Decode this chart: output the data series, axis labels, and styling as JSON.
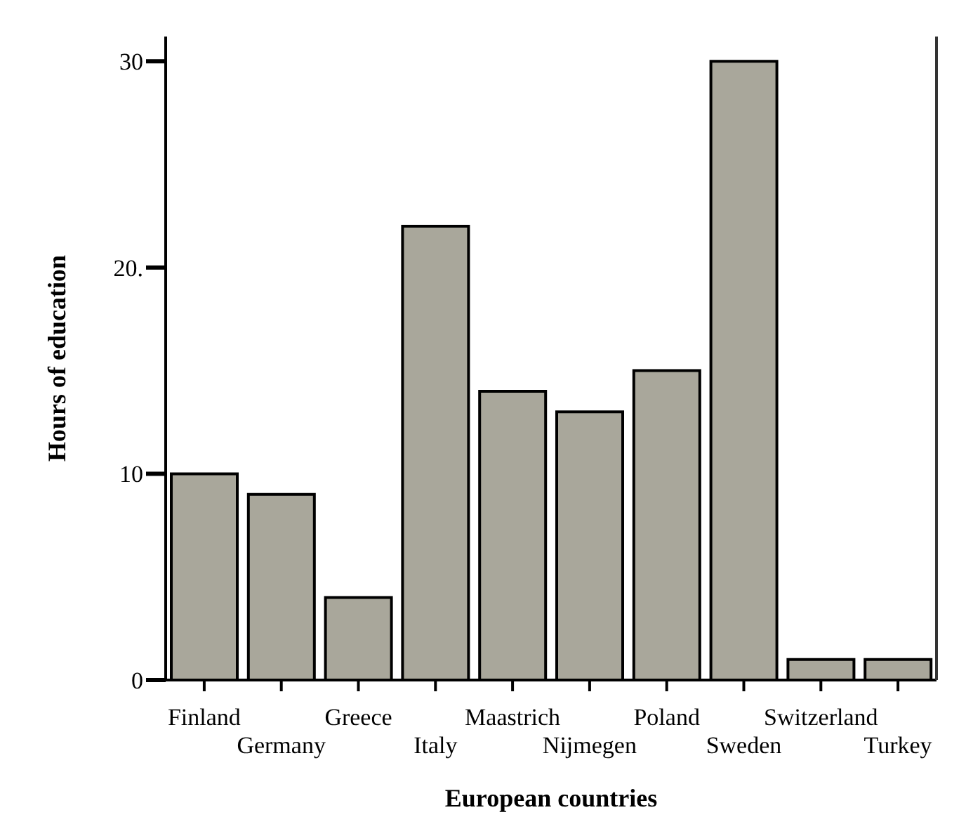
{
  "chart_data": {
    "type": "bar",
    "xlabel": "European countries",
    "ylabel": "Hours of education",
    "categories": [
      "Finland",
      "Germany",
      "Greece",
      "Italy",
      "Maastrich",
      "Nijmegen",
      "Poland",
      "Sweden",
      "Switzerland",
      "Turkey"
    ],
    "values": [
      10,
      9,
      4,
      22,
      14,
      13,
      15,
      30,
      1,
      1
    ],
    "color": "#a9a79b",
    "ylim": [
      0,
      31.2
    ],
    "yticks": [
      0,
      10,
      {
        "value": 20,
        "label": "20."
      },
      30
    ],
    "grid": false,
    "legend": false
  }
}
